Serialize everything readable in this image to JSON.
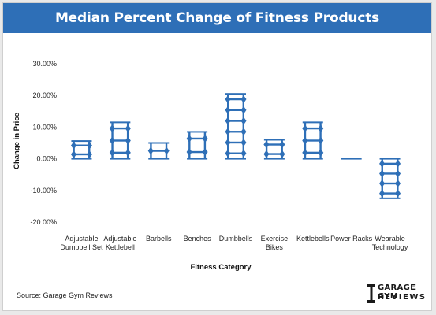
{
  "header": {
    "title": "Median Percent Change of Fitness Products"
  },
  "footer": {
    "source": "Source: Garage Gym Reviews"
  },
  "logo": {
    "line1": "GARAGE GYM",
    "line2": "REVIEWS"
  },
  "colors": {
    "header_bg": "#2e6fb7",
    "mark": "#2e6fb7",
    "mark_light": "#a9c6e8"
  },
  "chart_data": {
    "type": "bar",
    "title": "Median Percent Change of Fitness Products",
    "xlabel": "Fitness Category",
    "ylabel": "Change in Price",
    "ylim": [
      -20,
      30
    ],
    "yticks": [
      "-20.00%",
      "-10.00%",
      "0.00%",
      "10.00%",
      "20.00%",
      "30.00%"
    ],
    "grid": false,
    "categories": [
      [
        "Adjustable",
        "Dumbbell Set"
      ],
      [
        "Adjustable",
        "Kettlebell"
      ],
      [
        "Barbells"
      ],
      [
        "Benches"
      ],
      [
        "Dumbbells"
      ],
      [
        "Exercise",
        "Bikes"
      ],
      [
        "Kettlebells"
      ],
      [
        "Power Racks"
      ],
      [
        "Wearable",
        "Technology"
      ]
    ],
    "values": [
      5.6,
      11.5,
      5.0,
      8.5,
      20.5,
      6.0,
      11.5,
      0.0,
      -12.5
    ]
  }
}
